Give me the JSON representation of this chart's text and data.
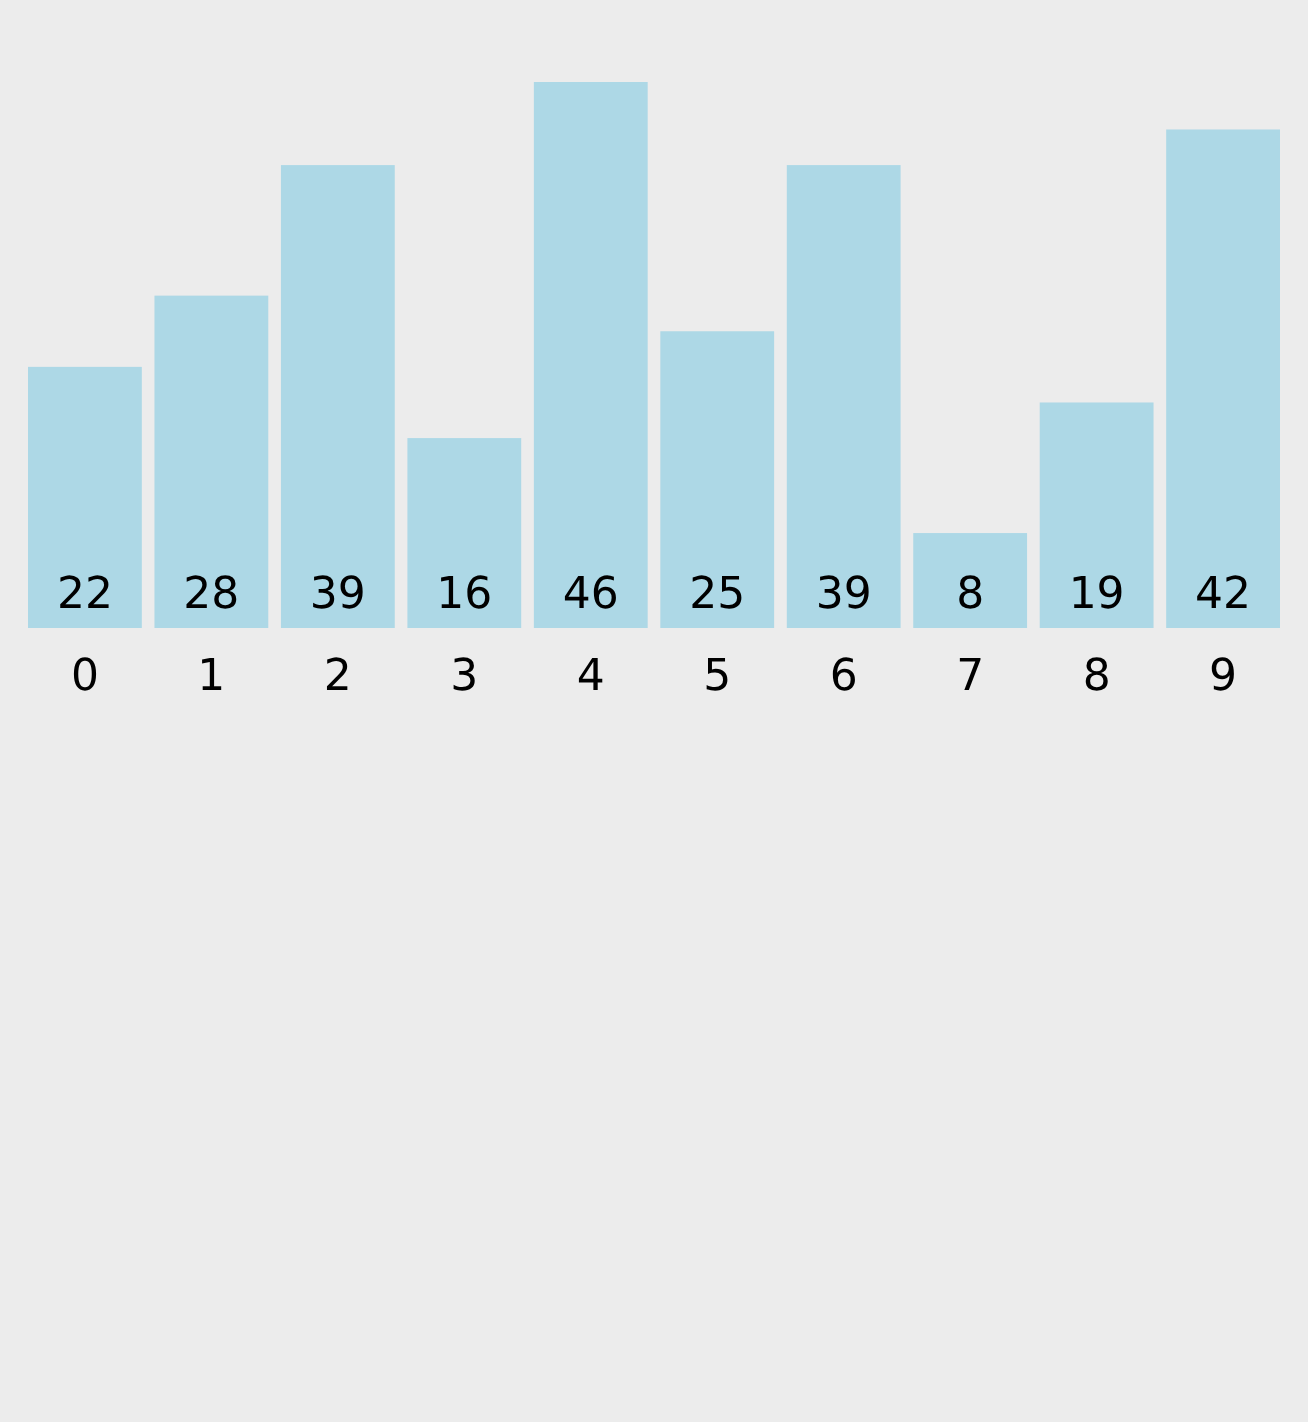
{
  "chart_data": {
    "type": "bar",
    "categories": [
      "0",
      "1",
      "2",
      "3",
      "4",
      "5",
      "6",
      "7",
      "8",
      "9"
    ],
    "values": [
      22,
      28,
      39,
      16,
      46,
      25,
      39,
      8,
      19,
      42
    ],
    "color": "#add8e6",
    "data_labels": true
  }
}
